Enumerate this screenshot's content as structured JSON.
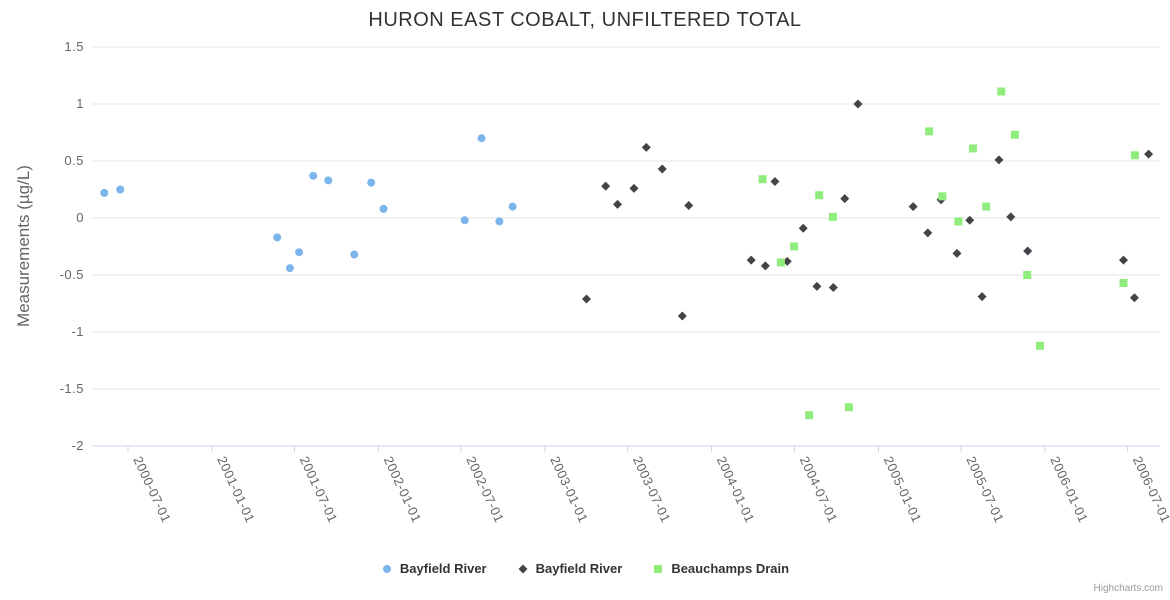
{
  "chart_data": {
    "type": "scatter",
    "title": "HURON EAST COBALT, UNFILTERED TOTAL",
    "xlabel": "",
    "ylabel": "Measurements (µg/L)",
    "ylim": [
      -2,
      1.5
    ],
    "yticks": [
      1.5,
      1,
      0.5,
      0,
      -0.5,
      -1,
      -1.5,
      -2
    ],
    "ytick_labels": [
      "1.5",
      "1",
      "0.5",
      "0",
      "-0.5",
      "-1",
      "-1.5",
      "-2"
    ],
    "xticks": [
      "2000-07-01",
      "2001-01-01",
      "2001-07-01",
      "2002-01-01",
      "2002-07-01",
      "2003-01-01",
      "2003-07-01",
      "2004-01-01",
      "2004-07-01",
      "2005-01-01",
      "2005-07-01",
      "2006-01-01",
      "2006-07-01"
    ],
    "grid": "horizontal",
    "legend_position": "bottom-center",
    "credit": "Highcharts.com",
    "colors": {
      "grid_line": "#e6e6e6",
      "axis_line": "#ccd6eb",
      "title_text": "#333333",
      "axis_text": "#666666",
      "legend_text": "#333333",
      "credit_text": "#999999"
    },
    "series": [
      {
        "name": "Bayfield River",
        "marker": "circle",
        "color": "#7cb5ec",
        "points": [
          [
            "2000-05-10",
            0.22
          ],
          [
            "2000-06-14",
            0.25
          ],
          [
            "2001-05-24",
            -0.17
          ],
          [
            "2001-06-21",
            -0.44
          ],
          [
            "2001-07-11",
            -0.3
          ],
          [
            "2001-08-11",
            0.37
          ],
          [
            "2001-09-13",
            0.33
          ],
          [
            "2001-11-09",
            -0.32
          ],
          [
            "2001-12-16",
            0.31
          ],
          [
            "2002-01-12",
            0.08
          ],
          [
            "2002-07-09",
            -0.02
          ],
          [
            "2002-08-15",
            0.7
          ],
          [
            "2002-09-23",
            -0.03
          ],
          [
            "2002-10-22",
            0.1
          ]
        ]
      },
      {
        "name": "Bayfield River",
        "marker": "diamond",
        "color": "#434348",
        "points": [
          [
            "2003-04-02",
            -0.71
          ],
          [
            "2003-05-14",
            0.28
          ],
          [
            "2003-06-09",
            0.12
          ],
          [
            "2003-07-15",
            0.26
          ],
          [
            "2003-08-11",
            0.62
          ],
          [
            "2003-09-15",
            0.43
          ],
          [
            "2003-10-29",
            -0.86
          ],
          [
            "2003-11-12",
            0.11
          ],
          [
            "2004-03-28",
            -0.37
          ],
          [
            "2004-04-28",
            -0.42
          ],
          [
            "2004-05-19",
            0.32
          ],
          [
            "2004-06-15",
            -0.38
          ],
          [
            "2004-07-20",
            -0.09
          ],
          [
            "2004-08-19",
            -0.6
          ],
          [
            "2004-09-24",
            -0.61
          ],
          [
            "2004-10-19",
            0.17
          ],
          [
            "2004-11-17",
            1.0
          ],
          [
            "2005-03-18",
            0.1
          ],
          [
            "2005-04-19",
            -0.13
          ],
          [
            "2005-05-18",
            0.16
          ],
          [
            "2005-06-22",
            -0.31
          ],
          [
            "2005-07-20",
            -0.02
          ],
          [
            "2005-08-16",
            -0.69
          ],
          [
            "2005-09-22",
            0.51
          ],
          [
            "2005-10-18",
            0.01
          ],
          [
            "2005-11-24",
            -0.29
          ],
          [
            "2006-06-22",
            -0.37
          ],
          [
            "2006-07-16",
            -0.7
          ],
          [
            "2006-08-16",
            0.56
          ]
        ]
      },
      {
        "name": "Beauchamps Drain",
        "marker": "square",
        "color": "#90ed7d",
        "points": [
          [
            "2004-04-22",
            0.34
          ],
          [
            "2004-06-01",
            -0.39
          ],
          [
            "2004-06-30",
            -0.25
          ],
          [
            "2004-08-02",
            -1.73
          ],
          [
            "2004-08-24",
            0.2
          ],
          [
            "2004-09-23",
            0.01
          ],
          [
            "2004-10-28",
            -1.66
          ],
          [
            "2005-04-22",
            0.76
          ],
          [
            "2005-05-21",
            0.19
          ],
          [
            "2005-06-25",
            -0.03
          ],
          [
            "2005-07-27",
            0.61
          ],
          [
            "2005-08-25",
            0.1
          ],
          [
            "2005-09-27",
            1.11
          ],
          [
            "2005-10-27",
            0.73
          ],
          [
            "2005-11-23",
            -0.5
          ],
          [
            "2005-12-21",
            -1.12
          ],
          [
            "2006-06-22",
            -0.57
          ],
          [
            "2006-07-17",
            0.55
          ]
        ]
      }
    ]
  }
}
